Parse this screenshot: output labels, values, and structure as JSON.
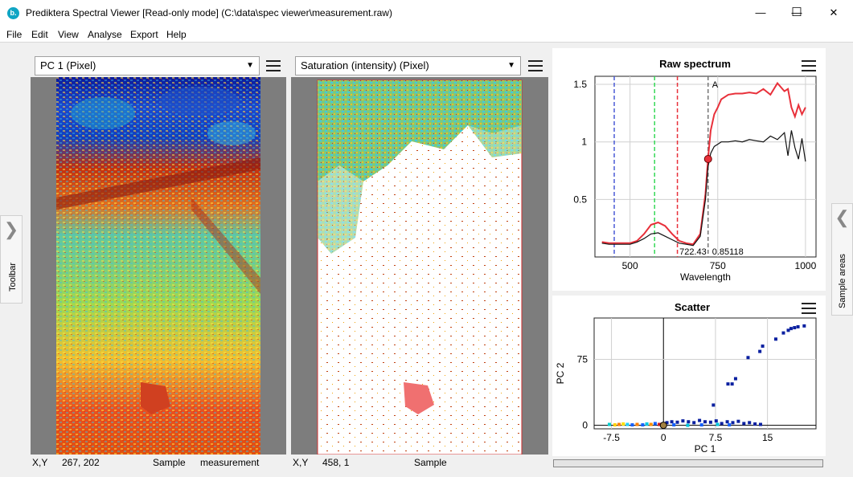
{
  "window": {
    "app_icon_letter": "b.",
    "title": "Prediktera Spectral Viewer [Read-only mode] (C:\\data\\spec viewer\\measurement.raw)",
    "controls": {
      "minimize": "—",
      "maximize": "☐",
      "close": "✕"
    }
  },
  "menu": [
    "File",
    "Edit",
    "View",
    "Analyse",
    "Export",
    "Help"
  ],
  "left_tab": {
    "label": "Toolbar",
    "icon": "chevron-right-icon"
  },
  "right_tab": {
    "label": "Sample areas",
    "icon": "chevron-left-icon"
  },
  "panel1": {
    "dropdown": "PC 1 (Pixel)",
    "status": {
      "xy_label": "X,Y",
      "xy_value": "267, 202",
      "sample_label": "Sample",
      "sample_value": "measurement"
    }
  },
  "panel2": {
    "dropdown": "Saturation (intensity) (Pixel)",
    "status": {
      "xy_label": "X,Y",
      "xy_value": "458, 1",
      "sample_label": "Sample"
    }
  },
  "raw_spectrum": {
    "title": "Raw spectrum",
    "marker_label": "A",
    "readout_x": "722.43",
    "readout_y": "0.85118",
    "colors": {
      "red_series": "#e8303a",
      "black_series": "#111111",
      "blue_line": "#4b5bd6",
      "green_line": "#36d957",
      "red_line": "#e8303a",
      "gray_line": "#777777"
    }
  },
  "scatter": {
    "title": "Scatter"
  },
  "chart_data": [
    {
      "type": "line",
      "title": "Raw spectrum",
      "xlabel": "Wavelength",
      "ylabel": "",
      "xlim": [
        400,
        1030
      ],
      "ylim": [
        0,
        1.57
      ],
      "xticks": [
        500,
        750,
        1000
      ],
      "yticks": [
        0.5,
        1,
        1.5
      ],
      "xtick_labels": [
        "500",
        "750",
        "1000"
      ],
      "ytick_labels": [
        "0.5",
        "1",
        "1.5"
      ],
      "grid": true,
      "vertical_lines": [
        {
          "x": 455,
          "color": "#4b5bd6"
        },
        {
          "x": 570,
          "color": "#36d957"
        },
        {
          "x": 635,
          "color": "#e8303a"
        },
        {
          "x": 722.43,
          "color": "#777777"
        }
      ],
      "highlight_point": {
        "x": 722.43,
        "y": 0.85118
      },
      "series": [
        {
          "color": "#e8303a",
          "x": [
            420,
            440,
            460,
            480,
            500,
            520,
            540,
            560,
            580,
            600,
            620,
            640,
            660,
            680,
            700,
            715,
            722,
            730,
            740,
            750,
            760,
            780,
            800,
            820,
            840,
            860,
            880,
            900,
            920,
            940,
            950,
            960,
            970,
            980,
            990,
            1000
          ],
          "y": [
            0.13,
            0.12,
            0.12,
            0.12,
            0.12,
            0.14,
            0.2,
            0.28,
            0.3,
            0.27,
            0.2,
            0.14,
            0.12,
            0.11,
            0.2,
            0.55,
            0.85,
            1.1,
            1.24,
            1.3,
            1.37,
            1.41,
            1.42,
            1.42,
            1.43,
            1.42,
            1.46,
            1.41,
            1.51,
            1.44,
            1.46,
            1.3,
            1.22,
            1.32,
            1.24,
            1.3
          ]
        },
        {
          "color": "#111111",
          "x": [
            420,
            440,
            460,
            480,
            500,
            520,
            540,
            560,
            580,
            600,
            620,
            640,
            660,
            680,
            700,
            715,
            722,
            730,
            740,
            750,
            760,
            780,
            800,
            820,
            840,
            860,
            880,
            900,
            920,
            940,
            950,
            960,
            970,
            980,
            990,
            1000
          ],
          "y": [
            0.12,
            0.11,
            0.11,
            0.11,
            0.11,
            0.13,
            0.16,
            0.2,
            0.21,
            0.18,
            0.15,
            0.12,
            0.11,
            0.1,
            0.18,
            0.5,
            0.78,
            0.9,
            0.96,
            0.98,
            1.0,
            1.0,
            1.01,
            1.0,
            1.02,
            1.01,
            1.0,
            1.05,
            1.02,
            1.08,
            0.88,
            1.1,
            0.95,
            0.85,
            1.03,
            0.83
          ]
        }
      ]
    },
    {
      "type": "scatter",
      "title": "Scatter",
      "xlabel": "PC 1",
      "ylabel": "PC 2",
      "xlim": [
        -10,
        22
      ],
      "ylim": [
        -4,
        122
      ],
      "xticks": [
        -7.5,
        0,
        7.5,
        15
      ],
      "yticks": [
        0,
        75
      ],
      "xtick_labels": [
        "-7.5",
        "0",
        "7.5",
        "15"
      ],
      "ytick_labels": [
        "0",
        "75"
      ],
      "grid": true,
      "highlight_point": {
        "x": 0,
        "y": 0
      },
      "points": [
        {
          "x": -7.8,
          "y": 1,
          "color": "#00cfcf"
        },
        {
          "x": -7.0,
          "y": 0.5,
          "color": "#ffd000"
        },
        {
          "x": -6.4,
          "y": 1,
          "color": "#ff8000"
        },
        {
          "x": -5.8,
          "y": 1.5,
          "color": "#ffe000"
        },
        {
          "x": -5.2,
          "y": 1,
          "color": "#20d0ff"
        },
        {
          "x": -4.5,
          "y": 0.5,
          "color": "#1460ff"
        },
        {
          "x": -3.8,
          "y": 1,
          "color": "#ff8000"
        },
        {
          "x": -3.0,
          "y": 0.5,
          "color": "#1460ff"
        },
        {
          "x": -2.4,
          "y": 1.5,
          "color": "#00c8e0"
        },
        {
          "x": -1.8,
          "y": 1,
          "color": "#ff9000"
        },
        {
          "x": -1.2,
          "y": 2,
          "color": "#1460ff"
        },
        {
          "x": -0.6,
          "y": 1,
          "color": "#d02020"
        },
        {
          "x": 0.5,
          "y": 3,
          "color": "#0a20a0"
        },
        {
          "x": 1.2,
          "y": 4,
          "color": "#0a20a0"
        },
        {
          "x": 2.0,
          "y": 3.5,
          "color": "#0a20a0"
        },
        {
          "x": 2.8,
          "y": 5,
          "color": "#0a20a0"
        },
        {
          "x": 3.6,
          "y": 4,
          "color": "#0a20a0"
        },
        {
          "x": 4.4,
          "y": 3,
          "color": "#0a20a0"
        },
        {
          "x": 5.2,
          "y": 5.5,
          "color": "#0a20a0"
        },
        {
          "x": 6.0,
          "y": 4,
          "color": "#0a20a0"
        },
        {
          "x": 6.8,
          "y": 3.5,
          "color": "#0a20a0"
        },
        {
          "x": 7.6,
          "y": 5,
          "color": "#0a20a0"
        },
        {
          "x": 8.4,
          "y": 2,
          "color": "#0a20a0"
        },
        {
          "x": 9.2,
          "y": 4,
          "color": "#0a20a0"
        },
        {
          "x": 10.0,
          "y": 3,
          "color": "#0a20a0"
        },
        {
          "x": 10.8,
          "y": 4.5,
          "color": "#0a20a0"
        },
        {
          "x": 11.6,
          "y": 2,
          "color": "#0a20a0"
        },
        {
          "x": 12.4,
          "y": 3,
          "color": "#0a20a0"
        },
        {
          "x": 13.2,
          "y": 1.5,
          "color": "#0a20a0"
        },
        {
          "x": 14.0,
          "y": 1,
          "color": "#0a20a0"
        },
        {
          "x": 1.5,
          "y": 0.5,
          "color": "#1460ff"
        },
        {
          "x": 3.5,
          "y": 0,
          "color": "#00c8e0"
        },
        {
          "x": 5.5,
          "y": 0.5,
          "color": "#1460ff"
        },
        {
          "x": 7.8,
          "y": 1,
          "color": "#00c8e0"
        },
        {
          "x": 9.5,
          "y": 0.5,
          "color": "#1460ff"
        },
        {
          "x": 7.2,
          "y": 23,
          "color": "#0a20a0"
        },
        {
          "x": 9.3,
          "y": 47,
          "color": "#0a20a0"
        },
        {
          "x": 9.9,
          "y": 47,
          "color": "#0a20a0"
        },
        {
          "x": 10.4,
          "y": 53,
          "color": "#0a20a0"
        },
        {
          "x": 12.2,
          "y": 77,
          "color": "#0a20a0"
        },
        {
          "x": 13.9,
          "y": 84,
          "color": "#0a20a0"
        },
        {
          "x": 14.3,
          "y": 90,
          "color": "#0a20a0"
        },
        {
          "x": 16.2,
          "y": 98,
          "color": "#0a20a0"
        },
        {
          "x": 17.3,
          "y": 105,
          "color": "#0a20a0"
        },
        {
          "x": 18.0,
          "y": 108,
          "color": "#0a20a0"
        },
        {
          "x": 18.4,
          "y": 110,
          "color": "#0a20a0"
        },
        {
          "x": 18.9,
          "y": 111,
          "color": "#0a20a0"
        },
        {
          "x": 19.4,
          "y": 112,
          "color": "#0a20a0"
        },
        {
          "x": 20.3,
          "y": 113,
          "color": "#0a20a0"
        }
      ]
    }
  ]
}
